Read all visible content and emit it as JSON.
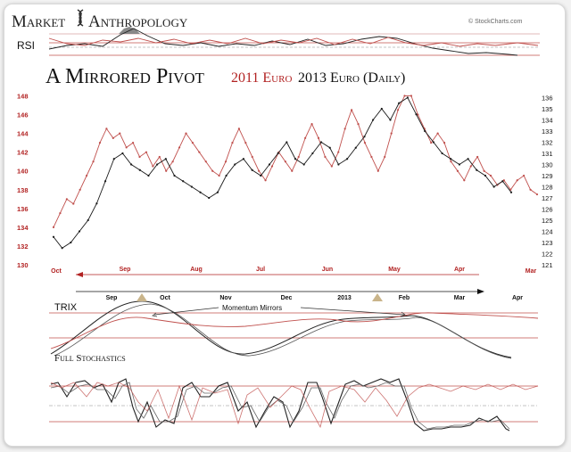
{
  "brand": {
    "word1": "Market",
    "word2": "Anthropology",
    "icon": "dna-helix-icon"
  },
  "credit": "© StockCharts.com",
  "rsi_label": "RSI",
  "title": {
    "main": "A Mirrored Pivot",
    "part_red": "2011 Euro",
    "part_black": "2013 Euro (Daily)"
  },
  "trix_label": "TRIX",
  "stoch_label": "Full Stochastics",
  "annotation": "Momentum Mirrors",
  "colors": {
    "red_series": "#c0504d",
    "black_series": "#1a1a1a",
    "red_text": "#b22222"
  },
  "chart_data": {
    "type": "line",
    "title": "A Mirrored Pivot 2011 Euro 2013 Euro (Daily)",
    "left_axis": {
      "ticks": [
        "148",
        "146",
        "144",
        "142",
        "140",
        "138",
        "136",
        "134",
        "132",
        "130"
      ],
      "range": [
        130,
        149
      ]
    },
    "right_axis": {
      "ticks": [
        "136",
        "135",
        "134",
        "133",
        "132",
        "131",
        "130",
        "129",
        "128",
        "127",
        "126",
        "125",
        "124",
        "123",
        "122",
        "121"
      ],
      "range": [
        121,
        137
      ]
    },
    "top_time_axis": {
      "labels": [
        "Oct",
        "Sep",
        "Aug",
        "Jul",
        "Jun",
        "May",
        "Apr",
        "Mar"
      ],
      "direction": "reversed"
    },
    "bottom_time_axis": {
      "labels": [
        "Sep",
        "Oct",
        "Nov",
        "Dec",
        "2013",
        "Feb",
        "Mar",
        "Apr"
      ],
      "direction": "forward"
    },
    "series": [
      {
        "name": "2011 Euro",
        "axis": "left",
        "values": [
          134.0,
          135.5,
          137.0,
          136.5,
          138.0,
          139.5,
          141.0,
          143.0,
          144.5,
          143.5,
          144.0,
          142.5,
          143.0,
          141.5,
          142.0,
          140.5,
          141.5,
          140.0,
          141.0,
          142.5,
          144.0,
          143.0,
          142.0,
          141.0,
          140.0,
          139.5,
          141.0,
          143.0,
          144.5,
          143.0,
          141.5,
          140.0,
          139.0,
          140.5,
          142.0,
          141.0,
          140.0,
          141.5,
          143.5,
          145.0,
          143.5,
          141.5,
          140.5,
          142.0,
          144.5,
          146.5,
          145.0,
          143.0,
          141.5,
          140.0,
          141.5,
          144.0,
          146.5,
          148.0,
          148.0,
          146.0,
          144.5,
          143.0,
          144.0,
          143.0,
          141.0,
          140.0,
          139.0,
          140.5,
          141.5,
          140.0,
          139.5,
          138.5,
          139.0,
          138.0,
          139.0,
          139.5,
          138.0,
          137.5
        ]
      },
      {
        "name": "2013 Euro",
        "axis": "right",
        "values": [
          123.5,
          122.5,
          123.0,
          124.0,
          125.0,
          126.5,
          128.5,
          130.5,
          131.0,
          130.0,
          129.5,
          129.0,
          130.0,
          130.5,
          129.0,
          128.5,
          128.0,
          127.5,
          127.0,
          127.5,
          129.0,
          130.0,
          130.5,
          129.5,
          129.0,
          130.0,
          131.0,
          132.0,
          130.5,
          130.0,
          131.0,
          132.0,
          131.5,
          130.0,
          130.5,
          131.5,
          132.5,
          134.0,
          135.0,
          134.0,
          135.5,
          136.0,
          134.5,
          133.0,
          132.0,
          131.0,
          130.5,
          130.0,
          130.5,
          129.5,
          129.0,
          128.0,
          128.5,
          127.5
        ]
      }
    ]
  }
}
